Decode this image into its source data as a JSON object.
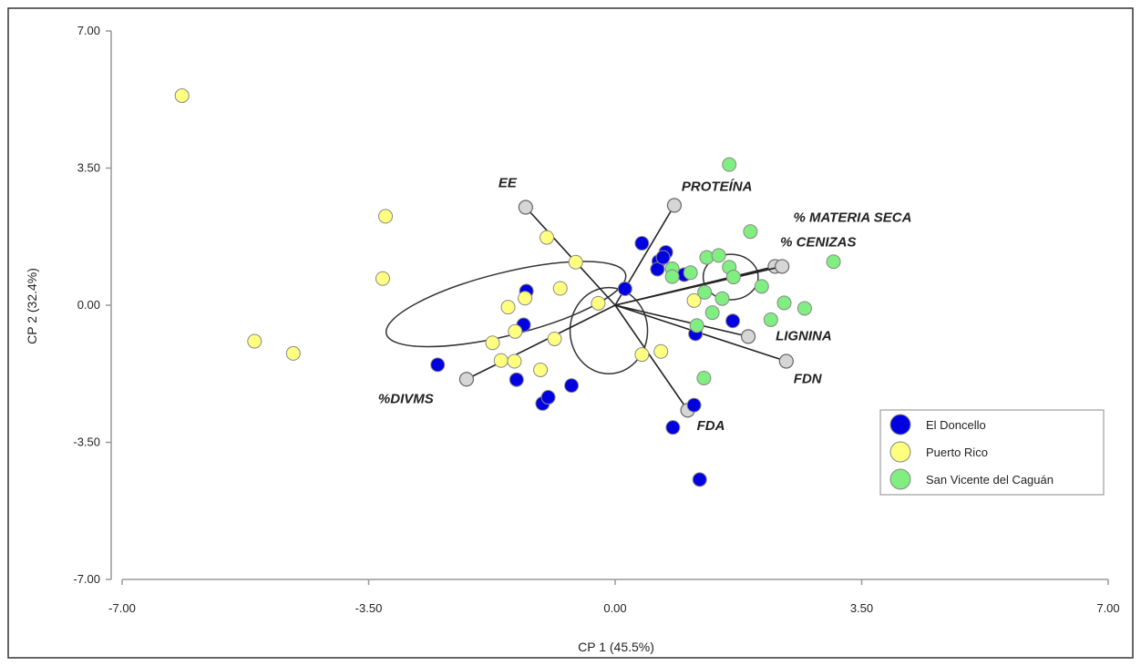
{
  "chart_data": {
    "type": "scatter",
    "title": "",
    "xlabel": "CP 1 (45.5%)",
    "ylabel": "CP 2 (32.4%)",
    "xlim": [
      -7,
      7
    ],
    "ylim": [
      -7,
      7
    ],
    "xticks": [
      "-7.00",
      "-3.50",
      "0.00",
      "3.50",
      "7.00"
    ],
    "yticks": [
      "-7.00",
      "-3.50",
      "0.00",
      "3.50",
      "7.00"
    ],
    "grid": false,
    "legend_position": "bottom-right",
    "series": [
      {
        "name": "El Doncello",
        "color": "#0000e0",
        "points": [
          [
            0.38,
            1.58
          ],
          [
            0.62,
            1.12
          ],
          [
            0.72,
            1.35
          ],
          [
            0.6,
            0.92
          ],
          [
            0.68,
            1.22
          ],
          [
            0.98,
            0.78
          ],
          [
            0.14,
            0.42
          ],
          [
            -1.26,
            0.36
          ],
          [
            -1.3,
            -0.5
          ],
          [
            -2.52,
            -1.52
          ],
          [
            -1.4,
            -1.9
          ],
          [
            -1.03,
            -2.51
          ],
          [
            -0.95,
            -2.35
          ],
          [
            -0.62,
            -2.05
          ],
          [
            1.14,
            -0.73
          ],
          [
            1.67,
            -0.4
          ],
          [
            1.12,
            -2.55
          ],
          [
            0.82,
            -3.12
          ],
          [
            1.2,
            -4.45
          ]
        ]
      },
      {
        "name": "Puerto Rico",
        "color": "#ffff80",
        "points": [
          [
            -6.15,
            5.35
          ],
          [
            -3.26,
            2.27
          ],
          [
            -3.3,
            0.68
          ],
          [
            -5.12,
            -0.92
          ],
          [
            -4.57,
            -1.23
          ],
          [
            -1.74,
            -0.96
          ],
          [
            -1.62,
            -1.41
          ],
          [
            -1.43,
            -1.43
          ],
          [
            -1.52,
            -0.05
          ],
          [
            -1.42,
            -0.67
          ],
          [
            -1.28,
            0.18
          ],
          [
            -1.06,
            -1.65
          ],
          [
            -0.97,
            1.73
          ],
          [
            -0.86,
            -0.86
          ],
          [
            -0.56,
            1.1
          ],
          [
            -0.78,
            0.43
          ],
          [
            -0.24,
            0.05
          ],
          [
            0.38,
            -1.26
          ],
          [
            0.65,
            -1.18
          ],
          [
            1.12,
            0.12
          ]
        ]
      },
      {
        "name": "San Vicente del Caguán",
        "color": "#80ee80",
        "points": [
          [
            1.62,
            3.59
          ],
          [
            1.92,
            1.88
          ],
          [
            1.3,
            1.22
          ],
          [
            1.47,
            1.27
          ],
          [
            1.62,
            0.97
          ],
          [
            1.68,
            0.72
          ],
          [
            0.81,
            0.93
          ],
          [
            0.81,
            0.73
          ],
          [
            1.07,
            0.83
          ],
          [
            1.27,
            0.33
          ],
          [
            1.38,
            -0.19
          ],
          [
            1.52,
            0.17
          ],
          [
            2.08,
            0.48
          ],
          [
            2.21,
            -0.37
          ],
          [
            2.4,
            0.06
          ],
          [
            2.69,
            -0.08
          ],
          [
            3.1,
            1.11
          ],
          [
            1.16,
            -0.52
          ],
          [
            1.26,
            -1.86
          ]
        ]
      }
    ],
    "vectors": [
      {
        "label": "EE",
        "x": -1.27,
        "y": 2.5
      },
      {
        "label": "PROTEÍNA",
        "x": 0.84,
        "y": 2.55
      },
      {
        "label": "% MATERIA SECA",
        "x": 2.27,
        "y": 0.99
      },
      {
        "label": "% CENIZAS",
        "x": 2.37,
        "y": 0.99
      },
      {
        "label": "LIGNINA",
        "x": 1.89,
        "y": -0.8
      },
      {
        "label": "FDN",
        "x": 2.43,
        "y": -1.43
      },
      {
        "label": "FDA",
        "x": 1.03,
        "y": -2.68
      },
      {
        "label": "%DIVMS",
        "x": -2.11,
        "y": -1.89
      }
    ],
    "ellipses": [
      {
        "cx": -1.55,
        "cy": 0.03,
        "rx": 1.75,
        "ry": 0.8,
        "angle_deg": -14
      },
      {
        "cx": -0.09,
        "cy": -0.65,
        "rx": 0.55,
        "ry": 1.1,
        "angle_deg": 0
      },
      {
        "cx": 1.64,
        "cy": 0.72,
        "rx": 0.39,
        "ry": 0.58,
        "angle_deg": 0
      }
    ]
  }
}
